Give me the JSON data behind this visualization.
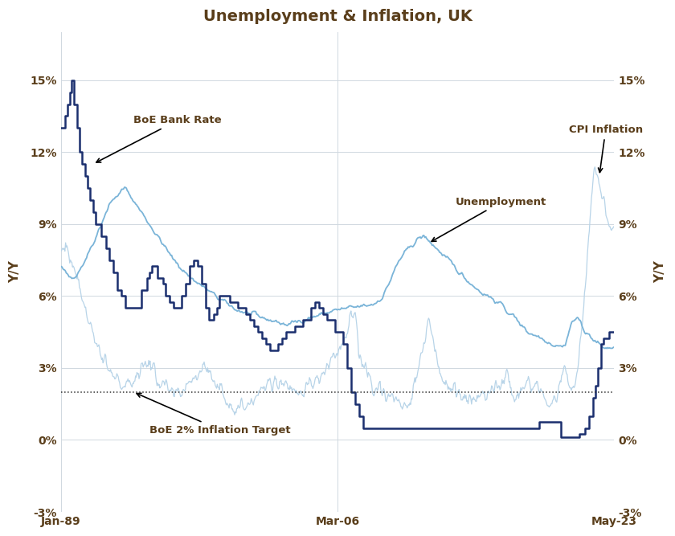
{
  "title": "Unemployment & Inflation, UK",
  "title_color": "#5a3e1b",
  "title_fontsize": 14,
  "background_color": "#ffffff",
  "ylim": [
    -3,
    17
  ],
  "yticks": [
    -3,
    0,
    3,
    6,
    9,
    12,
    15
  ],
  "ytick_labels": [
    "-3%",
    "0%",
    "3%",
    "6%",
    "9%",
    "12%",
    "15%"
  ],
  "ylabel": "Y/Y",
  "ylabel_color": "#5a3e1b",
  "xlabel_ticks": [
    "Jan-89",
    "Mar-06",
    "May-23"
  ],
  "boe_target": 2.0,
  "boe_rate_color": "#1b2f6e",
  "unemployment_color": "#7ab4d8",
  "cpi_color": "#b8d4e8",
  "boe_rate_lw": 1.8,
  "unemployment_lw": 1.3,
  "cpi_lw": 0.9,
  "target_line_color": "#333333",
  "grid_color": "#d0d8e0",
  "ann_color": "#5a3e1b",
  "ann_fontsize": 9.5,
  "ann_fontweight": "bold"
}
